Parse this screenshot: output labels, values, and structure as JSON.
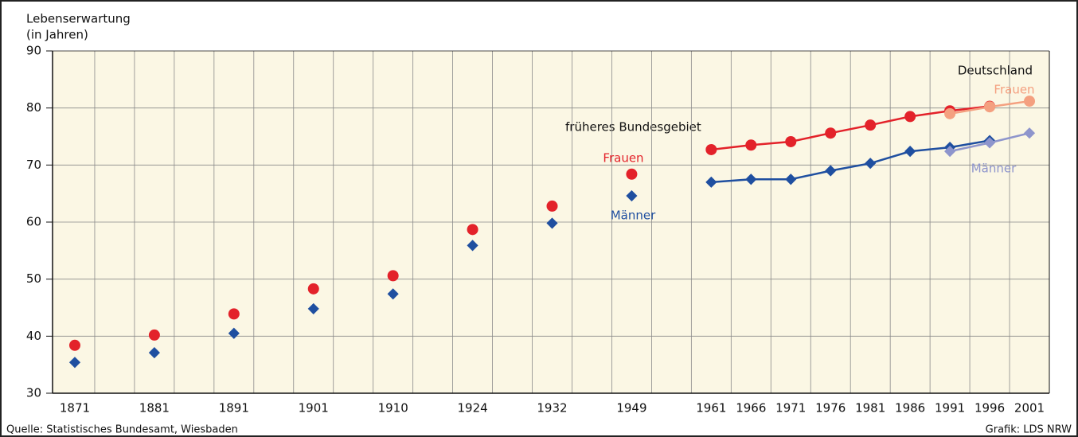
{
  "chart_data": {
    "type": "line",
    "y_label": [
      "Lebenserwartung",
      "(in Jahren)"
    ],
    "categories": [
      "1871",
      "1881",
      "1891",
      "1901",
      "1910",
      "1924",
      "1932",
      "1949",
      "1961",
      "1966",
      "1971",
      "1976",
      "1981",
      "1986",
      "1991",
      "1996",
      "2001"
    ],
    "series": [
      {
        "name": "Frauen",
        "color": "#e3222a",
        "marker": "circle",
        "values": [
          38.4,
          40.2,
          43.9,
          48.3,
          50.6,
          58.7,
          62.8,
          68.4,
          72.7,
          73.5,
          74.1,
          75.6,
          77.0,
          78.5,
          79.5,
          80.3,
          null
        ]
      },
      {
        "name": "Männer",
        "color": "#1f4fa0",
        "marker": "diamond",
        "values": [
          35.4,
          37.1,
          40.5,
          44.8,
          47.4,
          55.9,
          59.8,
          64.6,
          67.0,
          67.5,
          67.5,
          69.0,
          70.3,
          72.4,
          73.1,
          74.3,
          null
        ]
      },
      {
        "name": "Frauen",
        "color": "#f4a080",
        "marker": "circle",
        "values": [
          null,
          null,
          null,
          null,
          null,
          null,
          null,
          null,
          null,
          null,
          null,
          null,
          null,
          null,
          79.0,
          80.2,
          81.2
        ]
      },
      {
        "name": "Männer",
        "color": "#8e95cc",
        "marker": "diamond",
        "values": [
          null,
          null,
          null,
          null,
          null,
          null,
          null,
          null,
          null,
          null,
          null,
          null,
          null,
          null,
          72.4,
          73.9,
          75.6
        ]
      }
    ],
    "annotations": [
      "früheres Bundesgebiet",
      "Deutschland"
    ],
    "ylim": [
      30,
      90
    ],
    "yticks": [
      30,
      40,
      50,
      60,
      70,
      80,
      90
    ],
    "grid": true,
    "source": "Quelle: Statistisches Bundesamt, Wiesbaden",
    "credit": "Grafik: LDS NRW"
  }
}
